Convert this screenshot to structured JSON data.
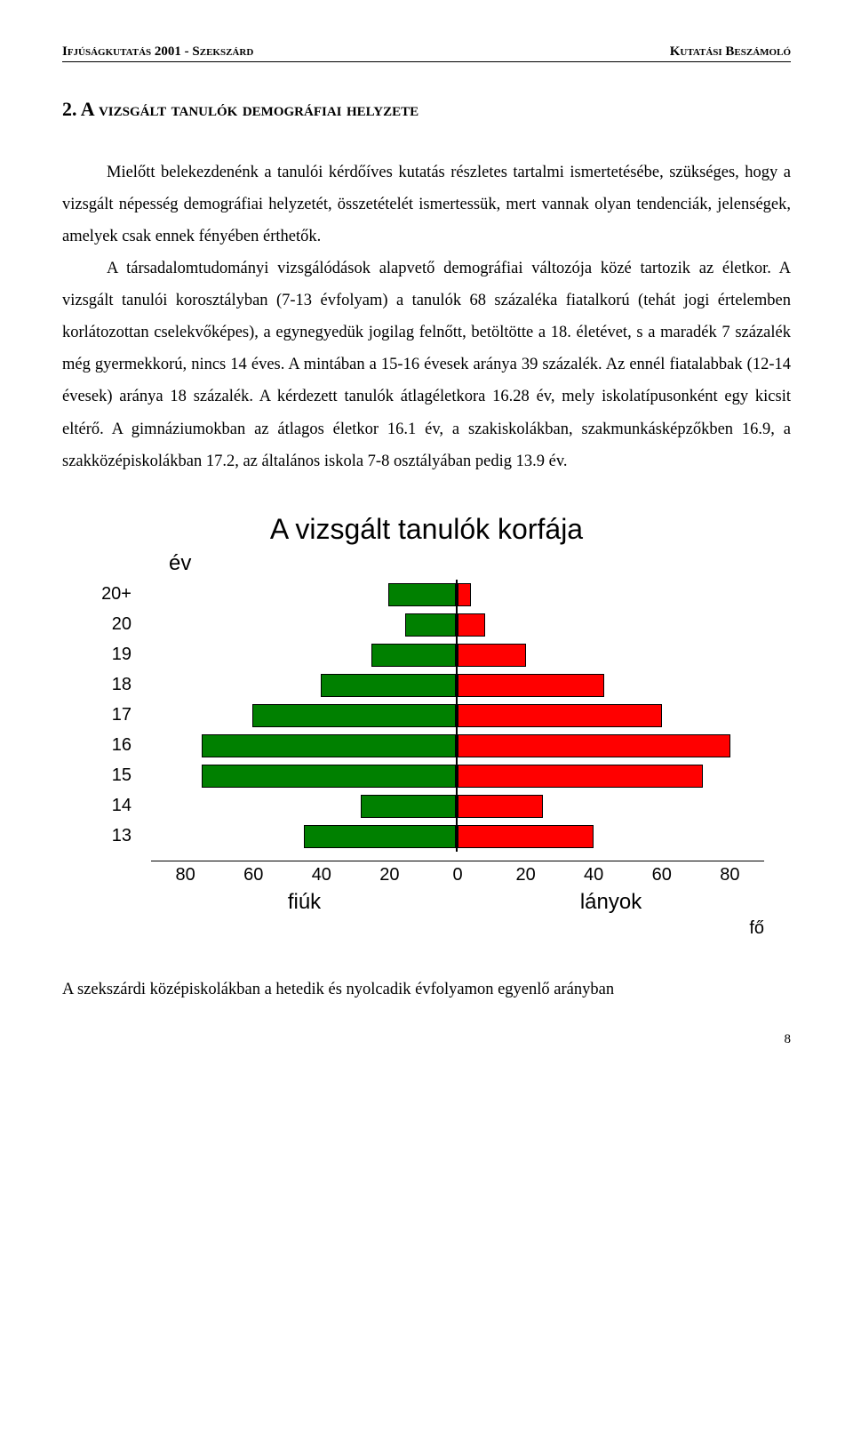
{
  "header": {
    "left": "Ifjúságkutatás 2001 - Szekszárd",
    "right": "Kutatási Beszámoló"
  },
  "section_title": "2. A vizsgált tanulók demográfiai helyzete",
  "paragraph": "Mielőtt belekezdenénk a tanulói kérdőíves kutatás részletes tartalmi ismertetésébe, szükséges, hogy a vizsgált népesség demográfiai helyzetét, összetételét ismertessük, mert vannak olyan tendenciák, jelenségek, amelyek csak ennek fényében érthetők.",
  "paragraph2": "A társadalomtudományi vizsgálódások alapvető demográfiai változója közé tartozik az életkor. A vizsgált tanulói korosztályban (7-13 évfolyam) a tanulók 68 százaléka fiatalkorú (tehát jogi értelemben korlátozottan cselekvőképes), a egynegyedük jogilag felnőtt, betöltötte a 18. életévet, s a maradék 7 százalék még gyermekkorú, nincs 14 éves. A mintában a 15-16 évesek aránya 39 százalék. Az ennél fiatalabbak (12-14 évesek) aránya 18 százalék. A kérdezett tanulók átlagéletkora 16.28 év, mely iskolatípusonként egy kicsit eltérő. A gimnáziumokban az átlagos életkor 16.1 év, a szakiskolákban, szakmunkásképzőkben 16.9, a szakközépiskolákban 17.2, az általános iskola 7-8 osztályában pedig 13.9 év.",
  "chart": {
    "type": "population-pyramid",
    "title": "A vizsgált tanulók korfája",
    "y_axis_label": "év",
    "x_left_label": "fiúk",
    "x_right_label": "lányok",
    "unit_label": "fő",
    "boys_color": "#008000",
    "girls_color": "#ff0000",
    "border_color": "#000000",
    "background_color": "#ffffff",
    "x_max": 90,
    "x_ticks": [
      "80",
      "60",
      "40",
      "20",
      "0",
      "20",
      "40",
      "60",
      "80"
    ],
    "x_tick_positions_pct": [
      5.6,
      16.7,
      27.8,
      38.9,
      50,
      61.1,
      72.2,
      83.3,
      94.4
    ],
    "title_fontsize": 32,
    "axis_fontsize": 20,
    "label_fontsize": 24,
    "data": [
      {
        "age": "20+",
        "boys": 20,
        "girls": 4
      },
      {
        "age": "20",
        "boys": 15,
        "girls": 8
      },
      {
        "age": "19",
        "boys": 25,
        "girls": 20
      },
      {
        "age": "18",
        "boys": 40,
        "girls": 43
      },
      {
        "age": "17",
        "boys": 60,
        "girls": 60
      },
      {
        "age": "16",
        "boys": 75,
        "girls": 80
      },
      {
        "age": "15",
        "boys": 75,
        "girls": 72
      },
      {
        "age": "14",
        "boys": 28,
        "girls": 25
      },
      {
        "age": "13",
        "boys": 45,
        "girls": 40
      }
    ]
  },
  "footer_text": "A szekszárdi középiskolákban a hetedik és nyolcadik évfolyamon egyenlő arányban",
  "page_number": "8"
}
